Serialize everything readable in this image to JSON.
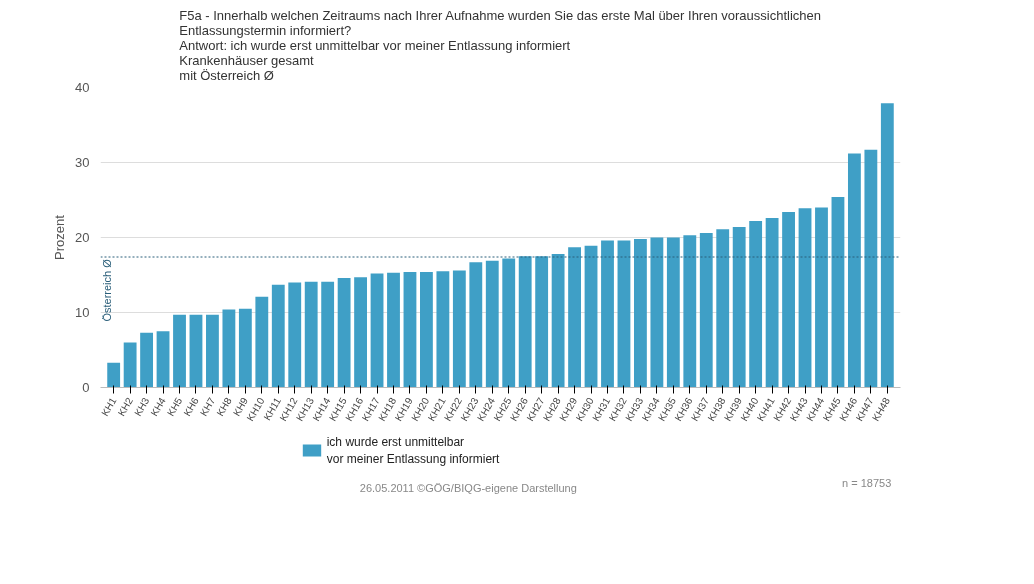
{
  "chart_data": {
    "type": "bar",
    "title": "F5a - Innerhalb welchen Zeitraums nach Ihrer Aufnahme wurden Sie das erste Mal über Ihren voraussichtlichen\nEntlassungstermin informiert?\nAntwort: ich wurde erst unmittelbar vor meiner Entlassung informiert\nKrankenhäuser gesamt\nmit Österreich Ø",
    "ylabel": "Prozent",
    "categories": [
      "KH1",
      "KH2",
      "KH3",
      "KH4",
      "KH5",
      "KH6",
      "KH7",
      "KH8",
      "KH9",
      "KH10",
      "KH11",
      "KH12",
      "KH13",
      "KH14",
      "KH15",
      "KH16",
      "KH17",
      "KH18",
      "KH19",
      "KH20",
      "KH21",
      "KH22",
      "KH23",
      "KH24",
      "KH25",
      "KH26",
      "KH27",
      "KH28",
      "KH29",
      "KH30",
      "KH31",
      "KH32",
      "KH33",
      "KH34",
      "KH35",
      "KH36",
      "KH37",
      "KH38",
      "KH39",
      "KH40",
      "KH41",
      "KH42",
      "KH43",
      "KH44",
      "KH45",
      "KH46",
      "KH47",
      "KH48"
    ],
    "series": [
      {
        "name": "ich wurde erst unmittelbar\nvor meiner Entlassung informiert",
        "color": "#3f9fc6",
        "values": [
          3.3,
          6.0,
          7.3,
          7.5,
          9.7,
          9.7,
          9.7,
          10.4,
          10.5,
          12.1,
          13.7,
          14.0,
          14.1,
          14.1,
          14.6,
          14.7,
          15.2,
          15.3,
          15.4,
          15.4,
          15.5,
          15.6,
          16.7,
          16.9,
          17.2,
          17.5,
          17.5,
          17.8,
          18.7,
          18.9,
          19.6,
          19.6,
          19.8,
          20.0,
          20.0,
          20.3,
          20.6,
          21.1,
          21.4,
          22.2,
          22.6,
          23.4,
          23.9,
          24.0,
          25.4,
          31.2,
          31.7,
          37.9
        ]
      }
    ],
    "ylim": [
      0,
      40
    ],
    "yticks": [
      0,
      10,
      20,
      30,
      40
    ],
    "grid": "y",
    "legend": "bottom",
    "ref_lines": [
      {
        "axis": "y",
        "value": 17.4,
        "label": "Österreich Ø",
        "color": "#2b5f7a",
        "line_style": "dotted"
      }
    ],
    "annotations": [
      "26.05.2011 ©GÖG/BIQG-eigene Darstellung",
      "n = 18753"
    ]
  }
}
